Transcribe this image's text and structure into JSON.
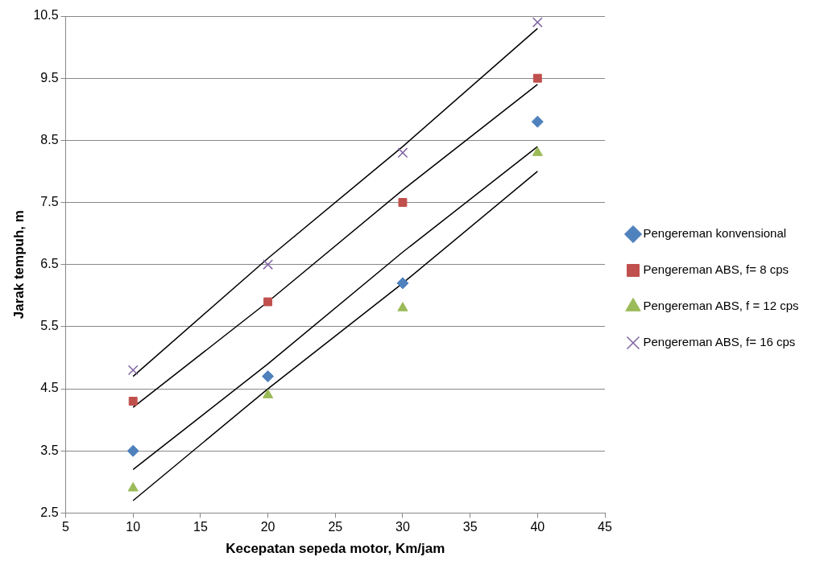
{
  "chart_data": {
    "type": "scatter",
    "xlabel": "Kecepatan sepeda motor, Km/jam",
    "ylabel": "Jarak tempuh, m",
    "x": [
      10,
      20,
      30,
      40
    ],
    "series": [
      {
        "name": "Pengereman konvensional",
        "color": "#4f81bd",
        "marker": "diamond",
        "values": [
          3.5,
          4.7,
          6.2,
          8.8
        ]
      },
      {
        "name": "Pengereman ABS, f= 8 cps",
        "color": "#c0504d",
        "marker": "square",
        "values": [
          4.3,
          5.9,
          7.5,
          9.5
        ]
      },
      {
        "name": "Pengereman ABS, f = 12 cps",
        "color": "#9bbb59",
        "marker": "triangle",
        "values": [
          2.9,
          4.4,
          5.8,
          8.3
        ]
      },
      {
        "name": "Pengereman ABS, f= 16 cps",
        "color": "#8064a2",
        "marker": "cross",
        "values": [
          4.8,
          6.5,
          8.3,
          10.4
        ]
      },
      {
        "type": "line",
        "color": "#000000",
        "marker": "none",
        "values": [
          4.7,
          6.6,
          8.4,
          10.3
        ]
      },
      {
        "type": "line",
        "color": "#000000",
        "marker": "none",
        "values": [
          4.2,
          5.9,
          7.7,
          9.4
        ]
      },
      {
        "type": "line",
        "color": "#000000",
        "marker": "none",
        "values": [
          3.2,
          4.9,
          6.7,
          8.4
        ]
      },
      {
        "type": "line",
        "color": "#000000",
        "marker": "none",
        "values": [
          2.7,
          4.5,
          6.2,
          8.0
        ]
      }
    ],
    "xlim": [
      5,
      45
    ],
    "xticks": [
      5,
      10,
      15,
      20,
      25,
      30,
      35,
      40,
      45
    ],
    "ylim": [
      2.5,
      10.5
    ],
    "yticks": [
      2.5,
      3.5,
      4.5,
      5.5,
      6.5,
      7.5,
      8.5,
      9.5,
      10.5
    ],
    "grid": "y",
    "legend": "right"
  }
}
